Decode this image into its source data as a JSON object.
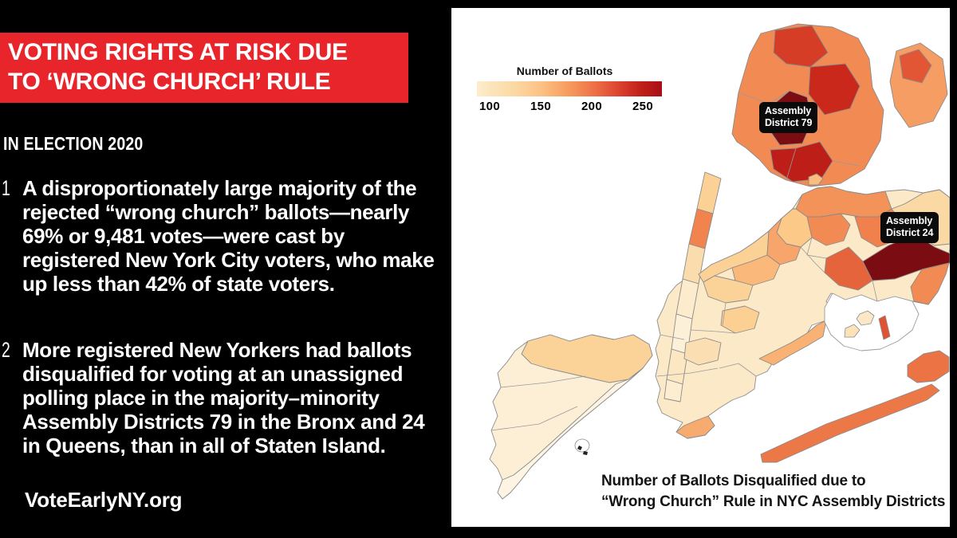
{
  "page": {
    "background": "#000000",
    "accent_red": "#e8252b"
  },
  "left_panel": {
    "banner": {
      "bg": "#e8252b",
      "title_line1": "VOTING RIGHTS AT RISK DUE",
      "title_line2": "TO ‘WRONG CHURCH’ RULE"
    },
    "kicker": "IN ELECTION 2020",
    "points": [
      {
        "number": "1",
        "text": "A disproportionately large majority of the rejected “wrong church” ballots—nearly 69% or 9,481 votes—were cast by registered New York City voters, who make up less than 42% of state voters."
      },
      {
        "number": "2",
        "text": "More registered New Yorkers had ballots disqualified for voting at an unassigned polling place in the majority–minority Assembly Districts 79 in the Bronx and 24 in Queens, than in all of Staten Island."
      }
    ],
    "website": "VoteEarlyNY.org"
  },
  "map_panel": {
    "legend": {
      "title": "Number of Ballots",
      "ticks": [
        "100",
        "150",
        "200",
        "250"
      ]
    },
    "labels": [
      {
        "line1": "Assembly",
        "line2": "District 79"
      },
      {
        "line1": "Assembly",
        "line2": "District 24"
      }
    ],
    "caption_line1": "Number of Ballots Disqualified due to",
    "caption_line2": "“Wrong Church” Rule in NYC Assembly Districts"
  },
  "chart_data": {
    "type": "choropleth",
    "title": "Number of Ballots Disqualified due to “Wrong Church” Rule in NYC Assembly Districts",
    "legend_title": "Number of Ballots",
    "scale": {
      "ticks": [
        100,
        150,
        200,
        250
      ],
      "min": 92,
      "max": 283,
      "colormap": "OrRd"
    },
    "highlighted_districts": [
      {
        "name": "Assembly District 79",
        "borough": "Bronx",
        "value": 283
      },
      {
        "name": "Assembly District 24",
        "borough": "Queens",
        "value": 283
      }
    ],
    "districts": [
      {
        "id": "m0",
        "value": 150
      },
      {
        "id": "m1",
        "value": 205
      },
      {
        "id": "m2",
        "value": 135
      },
      {
        "id": "m3",
        "value": 112
      },
      {
        "id": "m4",
        "value": 100
      },
      {
        "id": "m5",
        "value": 122
      },
      {
        "id": "m6",
        "value": 108
      },
      {
        "id": "bronx_main",
        "value": 200
      },
      {
        "id": "bronx_ne",
        "value": 190
      },
      {
        "id": "bronx_top_center",
        "value": 238
      },
      {
        "id": "bronx_williamsbridge",
        "value": 246
      },
      {
        "id": "bronx_ad79",
        "value": 283
      },
      {
        "id": "bronx_melrose",
        "value": 252
      },
      {
        "id": "bronx_ne_blotch",
        "value": 228
      },
      {
        "id": "bkqns_base",
        "value": 118
      },
      {
        "id": "queens_north_shore",
        "value": 196
      },
      {
        "id": "queens_flushing",
        "value": 206
      },
      {
        "id": "queens_ne_corner",
        "value": 140
      },
      {
        "id": "queens_ad24",
        "value": 283
      },
      {
        "id": "queens_jamaica",
        "value": 222
      },
      {
        "id": "queens_corona",
        "value": 200
      },
      {
        "id": "queens_ridgewood",
        "value": 160
      },
      {
        "id": "queens_southeast",
        "value": 200
      },
      {
        "id": "rockaway_spit",
        "value": 212
      },
      {
        "id": "far_rockaway",
        "value": 215
      },
      {
        "id": "bk_williamsburg",
        "value": 150
      },
      {
        "id": "bk_bushwick",
        "value": 185
      },
      {
        "id": "bk_bedstuy",
        "value": 172
      },
      {
        "id": "bk_crown",
        "value": 148
      },
      {
        "id": "bk_flatbush",
        "value": 152
      },
      {
        "id": "bk_borough_park",
        "value": 132
      },
      {
        "id": "bk_canarsie",
        "value": 178
      },
      {
        "id": "bk_coney",
        "value": 182
      },
      {
        "id": "rikers",
        "value": 170
      },
      {
        "id": "broad_channel",
        "value": 230
      },
      {
        "id": "bay_islet1",
        "value": 120
      },
      {
        "id": "bay_islet2",
        "value": 128
      },
      {
        "id": "staten_base",
        "value": 103
      },
      {
        "id": "si_north",
        "value": 148
      },
      {
        "id": "si_east",
        "value": 95
      }
    ]
  }
}
